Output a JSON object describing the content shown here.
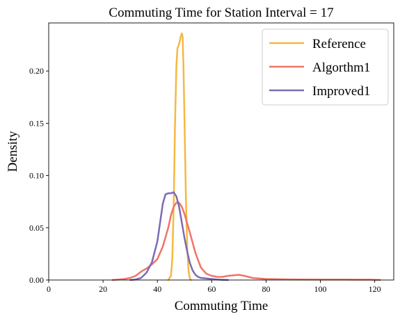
{
  "chart_data": {
    "type": "line",
    "title": "Commuting Time for Station Interval = 17",
    "xlabel": "Commuting Time",
    "ylabel": "Density",
    "xlim": [
      0,
      127
    ],
    "ylim": [
      0,
      0.246
    ],
    "xticks": [
      0,
      20,
      40,
      60,
      80,
      100,
      120
    ],
    "yticks": [
      0.0,
      0.05,
      0.1,
      0.15,
      0.2
    ],
    "ytick_labels": [
      "0.00",
      "0.05",
      "0.10",
      "0.15",
      "0.20"
    ],
    "grid": false,
    "legend_position": "top-right",
    "series": [
      {
        "name": "Reference",
        "color": "#f5b841",
        "points": [
          [
            44,
            0
          ],
          [
            45,
            0.004
          ],
          [
            45.5,
            0.02
          ],
          [
            46,
            0.07
          ],
          [
            46.5,
            0.15
          ],
          [
            47,
            0.205
          ],
          [
            47.4,
            0.222
          ],
          [
            47.8,
            0.224
          ],
          [
            48.2,
            0.228
          ],
          [
            48.6,
            0.233
          ],
          [
            49,
            0.236
          ],
          [
            49.3,
            0.233
          ],
          [
            49.6,
            0.205
          ],
          [
            50,
            0.15
          ],
          [
            50.5,
            0.08
          ],
          [
            51,
            0.03
          ],
          [
            51.5,
            0.008
          ],
          [
            52,
            0.001
          ],
          [
            52.5,
            0
          ]
        ]
      },
      {
        "name": "Algorthm1",
        "color": "#ee7565",
        "points": [
          [
            23.5,
            0
          ],
          [
            26,
            0.0005
          ],
          [
            28,
            0.001
          ],
          [
            30,
            0.002
          ],
          [
            32,
            0.004
          ],
          [
            34,
            0.008
          ],
          [
            36,
            0.011
          ],
          [
            38,
            0.015
          ],
          [
            40,
            0.02
          ],
          [
            42,
            0.032
          ],
          [
            44,
            0.05
          ],
          [
            45,
            0.062
          ],
          [
            46,
            0.07
          ],
          [
            47,
            0.074
          ],
          [
            48,
            0.074
          ],
          [
            49,
            0.07
          ],
          [
            50,
            0.063
          ],
          [
            52,
            0.045
          ],
          [
            54,
            0.026
          ],
          [
            56,
            0.012
          ],
          [
            58,
            0.006
          ],
          [
            60,
            0.004
          ],
          [
            62,
            0.003
          ],
          [
            64,
            0.003
          ],
          [
            66,
            0.004
          ],
          [
            68,
            0.0045
          ],
          [
            70,
            0.005
          ],
          [
            72,
            0.004
          ],
          [
            75,
            0.002
          ],
          [
            80,
            0.001
          ],
          [
            90,
            0.0005
          ],
          [
            100,
            0.0004
          ],
          [
            110,
            0.0004
          ],
          [
            118,
            0.0003
          ],
          [
            122,
            0
          ]
        ]
      },
      {
        "name": "Improved1",
        "color": "#7a6bb5",
        "points": [
          [
            30,
            0
          ],
          [
            32,
            0.0005
          ],
          [
            34,
            0.002
          ],
          [
            36,
            0.007
          ],
          [
            38,
            0.017
          ],
          [
            40,
            0.037
          ],
          [
            41,
            0.055
          ],
          [
            42,
            0.073
          ],
          [
            43,
            0.082
          ],
          [
            44,
            0.083
          ],
          [
            45,
            0.083
          ],
          [
            46,
            0.084
          ],
          [
            47,
            0.08
          ],
          [
            48,
            0.07
          ],
          [
            49,
            0.055
          ],
          [
            50,
            0.04
          ],
          [
            51,
            0.027
          ],
          [
            52,
            0.016
          ],
          [
            53,
            0.009
          ],
          [
            54,
            0.005
          ],
          [
            55,
            0.003
          ],
          [
            56,
            0.002
          ],
          [
            58,
            0.0015
          ],
          [
            60,
            0.001
          ],
          [
            62,
            0.0005
          ],
          [
            64,
            0.0002
          ],
          [
            66,
            0
          ]
        ]
      }
    ]
  }
}
